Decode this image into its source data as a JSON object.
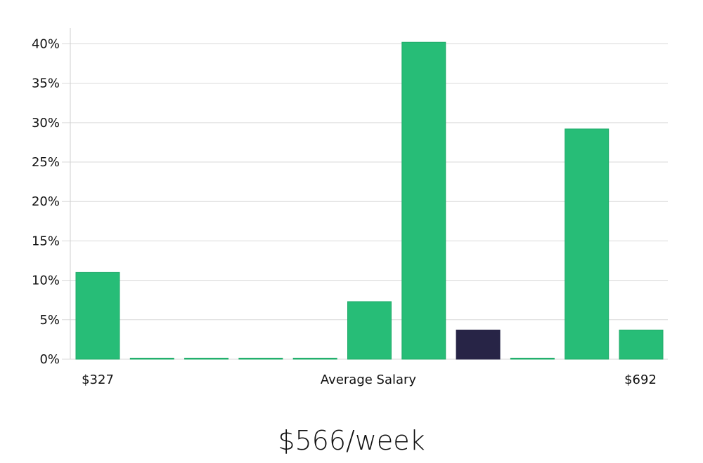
{
  "chart_data": {
    "type": "bar",
    "y_axis": {
      "min": 0,
      "max": 42,
      "ticks": [
        0,
        5,
        10,
        15,
        20,
        25,
        30,
        35,
        40
      ],
      "tick_suffix": "%"
    },
    "grid": true,
    "values": [
      11.0,
      0,
      0,
      0,
      0,
      7.3,
      40.2,
      3.7,
      0,
      29.2,
      3.7
    ],
    "highlight_index": 7,
    "x_labels": {
      "left": "$327",
      "center": "Average Salary",
      "right": "$692"
    }
  },
  "colors": {
    "bar": "#27bd77",
    "bar_stroke": "#20ab6a",
    "highlight": "#272446",
    "grid": "#d9d9d9",
    "axis": "#cfcfcf"
  },
  "summary": {
    "salary": "$566/week"
  }
}
